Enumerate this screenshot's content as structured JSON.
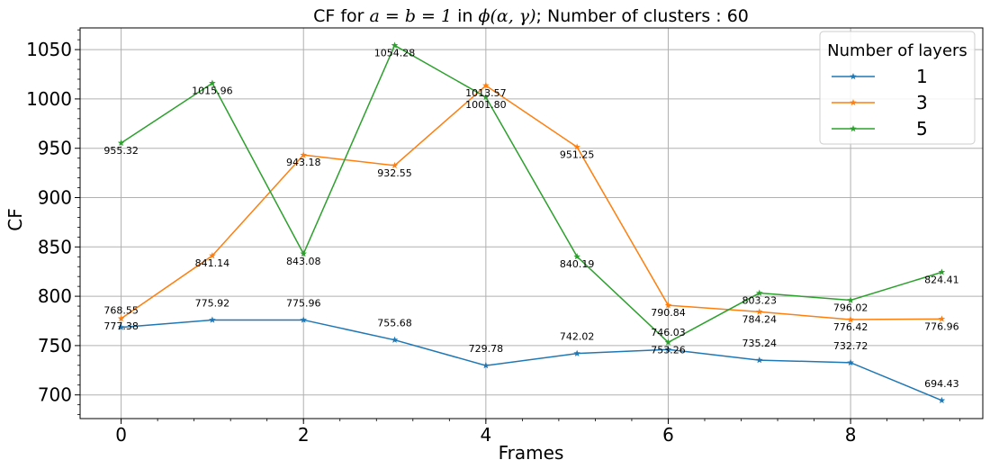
{
  "chart_data": {
    "type": "line",
    "title_prefix": "CF for ",
    "title_math": "a = b = 1",
    "title_mid": " in ",
    "title_func": "ϕ(α, γ)",
    "title_suffix": "; Number of clusters : 60",
    "xlabel": "Frames",
    "ylabel": "CF",
    "x": [
      0,
      1,
      2,
      3,
      4,
      5,
      6,
      7,
      8,
      9
    ],
    "xlim": [
      -0.45,
      9.45
    ],
    "ylim": [
      676,
      1072
    ],
    "xticks": [
      0,
      2,
      4,
      6,
      8
    ],
    "yticks": [
      700,
      750,
      800,
      850,
      900,
      950,
      1000,
      1050
    ],
    "grid": true,
    "legend": {
      "title": "Number of layers",
      "placement": "upper-right"
    },
    "series": [
      {
        "name": "1",
        "color": "#1f77b4",
        "values": [
          768.55,
          775.92,
          775.96,
          755.68,
          729.78,
          742.02,
          746.03,
          735.24,
          732.72,
          694.43
        ],
        "labels": [
          "768.55",
          "775.92",
          "775.96",
          "755.68",
          "729.78",
          "742.02",
          "746.03",
          "735.24",
          "732.72",
          "694.43"
        ]
      },
      {
        "name": "3",
        "color": "#ff7f0e",
        "values": [
          777.38,
          841.14,
          943.18,
          932.55,
          1013.57,
          951.25,
          790.84,
          784.24,
          776.42,
          776.96
        ],
        "labels": [
          "777.38",
          "841.14",
          "943.18",
          "932.55",
          "1013.57",
          "951.25",
          "790.84",
          "784.24",
          "776.42",
          "776.96"
        ]
      },
      {
        "name": "5",
        "color": "#2ca02c",
        "values": [
          955.32,
          1015.96,
          843.08,
          1054.28,
          1001.8,
          840.19,
          753.26,
          803.23,
          796.02,
          824.41
        ],
        "labels": [
          "955.32",
          "1015.96",
          "843.08",
          "1054.28",
          "1001.80",
          "840.19",
          "753.26",
          "803.23",
          "796.02",
          "824.41"
        ]
      }
    ]
  }
}
